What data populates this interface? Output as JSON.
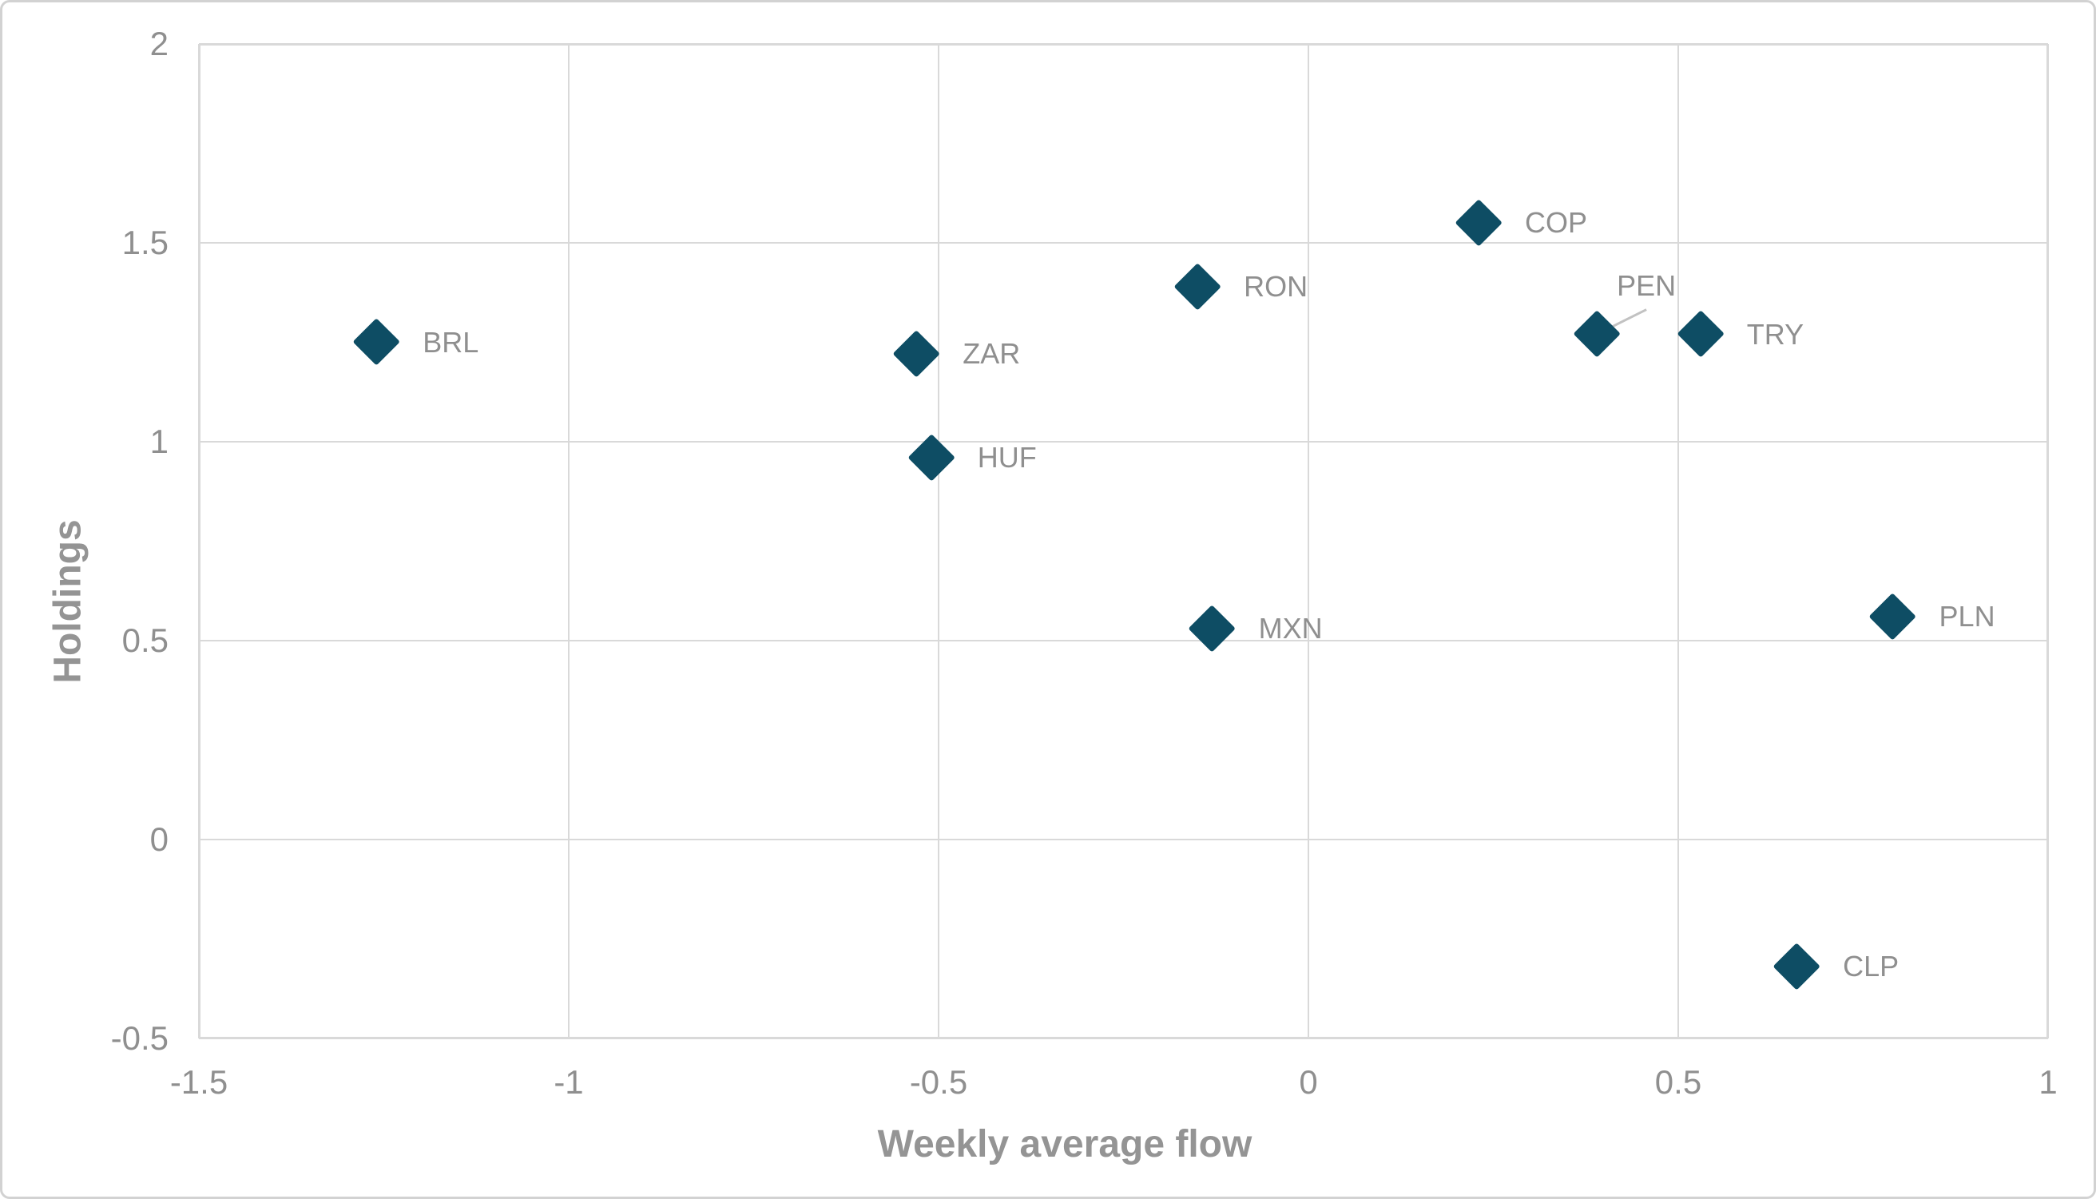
{
  "chart_data": {
    "type": "scatter",
    "title": "",
    "xlabel": "Weekly average flow",
    "ylabel": "Holdings",
    "xlim": [
      -1.5,
      1
    ],
    "ylim": [
      -0.5,
      2
    ],
    "grid": true,
    "legend": "none",
    "marker_shape": "diamond",
    "x_ticks": [
      {
        "value": -1.5,
        "label": "-1.5"
      },
      {
        "value": -1,
        "label": "-1"
      },
      {
        "value": -0.5,
        "label": "-0.5"
      },
      {
        "value": 0,
        "label": "0"
      },
      {
        "value": 0.5,
        "label": "0.5"
      },
      {
        "value": 1,
        "label": "1"
      }
    ],
    "y_ticks": [
      {
        "value": -0.5,
        "label": "-0.5"
      },
      {
        "value": 0,
        "label": "0"
      },
      {
        "value": 0.5,
        "label": "0.5"
      },
      {
        "value": 1,
        "label": "1"
      },
      {
        "value": 1.5,
        "label": "1.5"
      },
      {
        "value": 2,
        "label": "2"
      }
    ],
    "points": [
      {
        "label": "BRL",
        "x": -1.26,
        "y": 1.25,
        "label_position": "right"
      },
      {
        "label": "ZAR",
        "x": -0.53,
        "y": 1.22,
        "label_position": "right"
      },
      {
        "label": "HUF",
        "x": -0.51,
        "y": 0.96,
        "label_position": "right"
      },
      {
        "label": "RON",
        "x": -0.15,
        "y": 1.39,
        "label_position": "right"
      },
      {
        "label": "MXN",
        "x": -0.13,
        "y": 0.53,
        "label_position": "right"
      },
      {
        "label": "COP",
        "x": 0.23,
        "y": 1.55,
        "label_position": "right"
      },
      {
        "label": "PEN",
        "x": 0.39,
        "y": 1.27,
        "label_position": "above",
        "leader_line": true
      },
      {
        "label": "TRY",
        "x": 0.53,
        "y": 1.27,
        "label_position": "right"
      },
      {
        "label": "PLN",
        "x": 0.79,
        "y": 0.56,
        "label_position": "right"
      },
      {
        "label": "CLP",
        "x": 0.66,
        "y": -0.32,
        "label_position": "right"
      }
    ]
  },
  "colors": {
    "marker": "#0e4d64",
    "grid": "#d9d9d9",
    "tick_text": "#8f8f8f",
    "point_label_text": "#8f8f8f",
    "axis_title_text": "#949494",
    "leader_line": "#c2c2c2",
    "frame_border": "#d2d2d2",
    "background": "#ffffff"
  }
}
